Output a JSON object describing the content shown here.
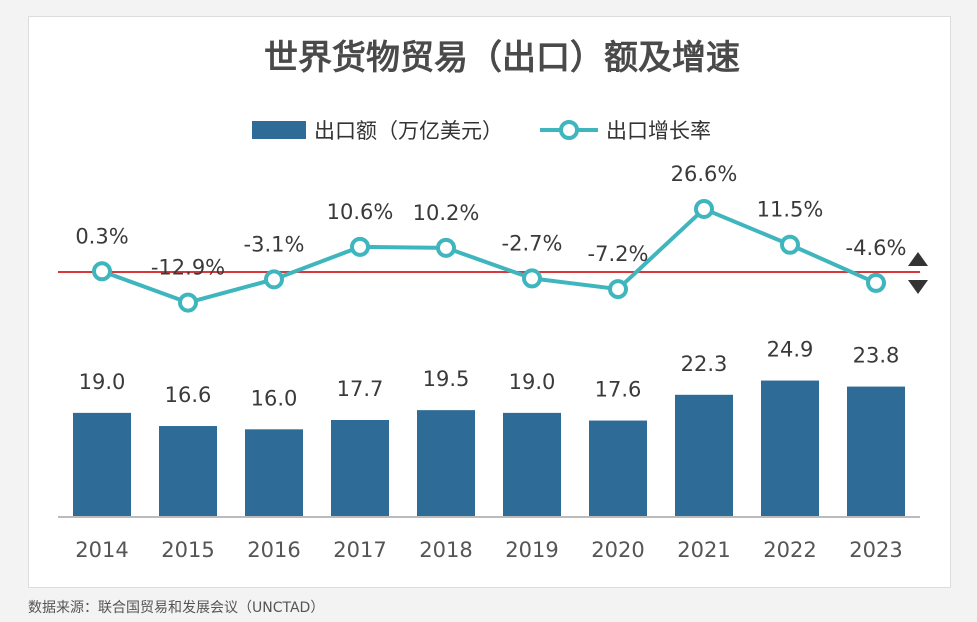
{
  "source_note": "数据来源：联合国贸易和发展会议（UNCTAD）",
  "chart_data": {
    "type": "bar",
    "title": "世界货物贸易（出口）额及增速",
    "categories": [
      "2014",
      "2015",
      "2016",
      "2017",
      "2018",
      "2019",
      "2020",
      "2021",
      "2022",
      "2023"
    ],
    "series": [
      {
        "name": "出口额（万亿美元）",
        "type": "bar",
        "color": "#2e6b96",
        "values": [
          19.0,
          16.6,
          16.0,
          17.7,
          19.5,
          19.0,
          17.6,
          22.3,
          24.9,
          23.8
        ],
        "labels": [
          "19.0",
          "16.6",
          "16.0",
          "17.7",
          "19.5",
          "19.0",
          "17.6",
          "22.3",
          "24.9",
          "23.8"
        ]
      },
      {
        "name": "出口增长率",
        "type": "line",
        "color": "#3fb5bd",
        "values": [
          0.3,
          -12.9,
          -3.1,
          10.6,
          10.2,
          -2.7,
          -7.2,
          26.6,
          11.5,
          -4.6
        ],
        "labels": [
          "0.3%",
          "-12.9%",
          "-3.1%",
          "10.6%",
          "10.2%",
          "-2.7%",
          "-7.2%",
          "26.6%",
          "11.5%",
          "-4.6%"
        ]
      }
    ],
    "reference_line": {
      "value": 0,
      "color": "#d9383a"
    },
    "legend_position": "top-center",
    "grid": false
  }
}
